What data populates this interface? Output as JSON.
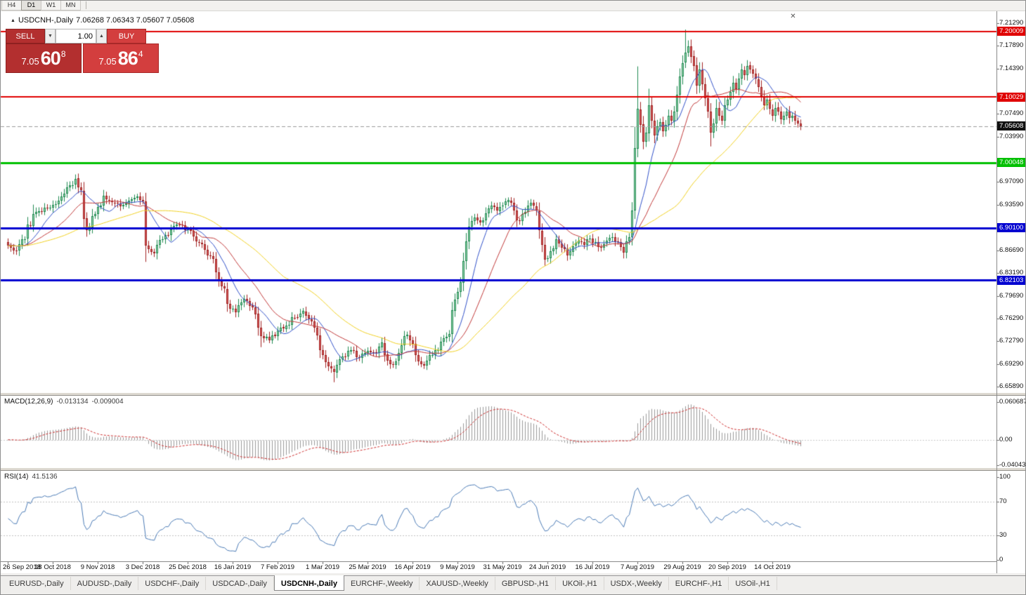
{
  "toolbar": {
    "timeframes": [
      {
        "label": "H4",
        "active": false
      },
      {
        "label": "D1",
        "active": true
      },
      {
        "label": "W1",
        "active": false
      },
      {
        "label": "MN",
        "active": false
      }
    ]
  },
  "chart": {
    "title": "USDCNH-,Daily",
    "ohlc": "7.06268 7.06343 7.05607 7.05608"
  },
  "trade_panel": {
    "sell_label": "SELL",
    "buy_label": "BUY",
    "volume": "1.00",
    "sell_price_main": "7.05",
    "sell_price_big": "60",
    "sell_price_sup": "8",
    "buy_price_main": "7.05",
    "buy_price_big": "86",
    "buy_price_sup": "4"
  },
  "close_glyph": "✕",
  "price_axis": {
    "labels": [
      "7.21290",
      "7.17890",
      "7.14390",
      "7.07490",
      "7.03990",
      "6.97090",
      "6.93590",
      "6.86690",
      "6.83190",
      "6.79690",
      "6.76290",
      "6.72790",
      "6.69290",
      "6.65890"
    ]
  },
  "macd": {
    "name": "MACD(12,26,9)",
    "main_value": "-0.013134",
    "signal_value": "-0.009004",
    "axis_labels": [
      "0.060687",
      "0.00",
      "-0.04043"
    ],
    "axis_values": [
      0.060687,
      0,
      -0.04043
    ],
    "hist_color": "#9a9a9a",
    "signal_color": "#cc2a2a"
  },
  "rsi": {
    "name": "RSI(14)",
    "value": "41.5136",
    "period": 14,
    "axis_labels": [
      "100",
      "70",
      "30",
      "0"
    ],
    "axis_values": [
      100,
      70,
      30,
      0
    ],
    "levels": [
      70,
      30
    ],
    "color": "#4a7ab5"
  },
  "tabs": [
    {
      "label": "EURUSD-,Daily",
      "active": false
    },
    {
      "label": "AUDUSD-,Daily",
      "active": false
    },
    {
      "label": "USDCHF-,Daily",
      "active": false
    },
    {
      "label": "USDCAD-,Daily",
      "active": false
    },
    {
      "label": "USDCNH-,Daily",
      "active": true
    },
    {
      "label": "EURCHF-,Weekly",
      "active": false
    },
    {
      "label": "XAUUSD-,Weekly",
      "active": false
    },
    {
      "label": "GBPUSD-,H1",
      "active": false
    },
    {
      "label": "UKOil-,H1",
      "active": false
    },
    {
      "label": "USDX-,Weekly",
      "active": false
    },
    {
      "label": "EURCHF-,H1",
      "active": false
    },
    {
      "label": "USOil-,H1",
      "active": false
    }
  ],
  "chart_data": {
    "type": "candlestick",
    "symbol": "USDCNH-",
    "timeframe": "Daily",
    "current": {
      "open": "7.06268",
      "high": "7.06343",
      "low": "7.05607",
      "close": "7.05608"
    },
    "ylim": [
      6.6589,
      7.2129
    ],
    "bar_count": 283,
    "x_tick_interval_bars": 16,
    "x_ticks": [
      "26 Sep 2018",
      "18 Oct 2018",
      "9 Nov 2018",
      "3 Dec 2018",
      "25 Dec 2018",
      "16 Jan 2019",
      "7 Feb 2019",
      "1 Mar 2019",
      "25 Mar 2019",
      "16 Apr 2019",
      "9 May 2019",
      "31 May 2019",
      "24 Jun 2019",
      "16 Jul 2019",
      "7 Aug 2019",
      "29 Aug 2019",
      "20 Sep 2019",
      "14 Oct 2019"
    ],
    "price_anchors": [
      [
        0,
        6.874
      ],
      [
        3,
        6.866
      ],
      [
        6,
        6.884
      ],
      [
        9,
        6.922
      ],
      [
        12,
        6.926
      ],
      [
        16,
        6.936
      ],
      [
        20,
        6.953
      ],
      [
        24,
        6.976
      ],
      [
        26,
        6.958
      ],
      [
        28,
        6.897
      ],
      [
        31,
        6.922
      ],
      [
        34,
        6.95
      ],
      [
        37,
        6.94
      ],
      [
        40,
        6.934
      ],
      [
        43,
        6.942
      ],
      [
        46,
        6.949
      ],
      [
        48,
        6.941
      ],
      [
        49,
        6.874
      ],
      [
        52,
        6.862
      ],
      [
        55,
        6.884
      ],
      [
        58,
        6.899
      ],
      [
        61,
        6.906
      ],
      [
        64,
        6.898
      ],
      [
        67,
        6.88
      ],
      [
        70,
        6.867
      ],
      [
        73,
        6.854
      ],
      [
        76,
        6.812
      ],
      [
        79,
        6.778
      ],
      [
        81,
        6.772
      ],
      [
        84,
        6.793
      ],
      [
        87,
        6.78
      ],
      [
        90,
        6.736
      ],
      [
        93,
        6.73
      ],
      [
        96,
        6.744
      ],
      [
        99,
        6.752
      ],
      [
        102,
        6.764
      ],
      [
        105,
        6.774
      ],
      [
        108,
        6.758
      ],
      [
        111,
        6.714
      ],
      [
        114,
        6.69
      ],
      [
        116,
        6.681
      ],
      [
        119,
        6.705
      ],
      [
        122,
        6.714
      ],
      [
        125,
        6.703
      ],
      [
        128,
        6.713
      ],
      [
        131,
        6.71
      ],
      [
        133,
        6.726
      ],
      [
        135,
        6.699
      ],
      [
        137,
        6.693
      ],
      [
        140,
        6.722
      ],
      [
        142,
        6.738
      ],
      [
        144,
        6.724
      ],
      [
        146,
        6.697
      ],
      [
        148,
        6.691
      ],
      [
        151,
        6.707
      ],
      [
        154,
        6.727
      ],
      [
        156,
        6.735
      ],
      [
        157,
        6.739
      ],
      [
        158,
        6.775
      ],
      [
        159,
        6.792
      ],
      [
        160,
        6.803
      ],
      [
        161,
        6.818
      ],
      [
        162,
        6.85
      ],
      [
        163,
        6.88
      ],
      [
        164,
        6.903
      ],
      [
        166,
        6.917
      ],
      [
        168,
        6.909
      ],
      [
        170,
        6.923
      ],
      [
        172,
        6.935
      ],
      [
        174,
        6.927
      ],
      [
        176,
        6.935
      ],
      [
        178,
        6.943
      ],
      [
        180,
        6.927
      ],
      [
        182,
        6.911
      ],
      [
        184,
        6.925
      ],
      [
        186,
        6.939
      ],
      [
        188,
        6.927
      ],
      [
        190,
        6.875
      ],
      [
        191,
        6.853
      ],
      [
        193,
        6.865
      ],
      [
        195,
        6.883
      ],
      [
        197,
        6.871
      ],
      [
        199,
        6.859
      ],
      [
        201,
        6.873
      ],
      [
        203,
        6.881
      ],
      [
        205,
        6.875
      ],
      [
        207,
        6.885
      ],
      [
        209,
        6.879
      ],
      [
        211,
        6.871
      ],
      [
        213,
        6.881
      ],
      [
        215,
        6.887
      ],
      [
        217,
        6.879
      ],
      [
        219,
        6.863
      ],
      [
        221,
        6.887
      ],
      [
        222,
        6.927
      ],
      [
        223,
        7.022
      ],
      [
        224,
        7.082
      ],
      [
        225,
        7.058
      ],
      [
        226,
        7.032
      ],
      [
        227,
        7.046
      ],
      [
        228,
        7.088
      ],
      [
        229,
        7.064
      ],
      [
        230,
        7.042
      ],
      [
        231,
        7.056
      ],
      [
        232,
        7.062
      ],
      [
        233,
        7.048
      ],
      [
        234,
        7.058
      ],
      [
        235,
        7.072
      ],
      [
        236,
        7.064
      ],
      [
        237,
        7.078
      ],
      [
        238,
        7.104
      ],
      [
        239,
        7.132
      ],
      [
        240,
        7.152
      ],
      [
        241,
        7.168
      ],
      [
        242,
        7.178
      ],
      [
        243,
        7.162
      ],
      [
        244,
        7.148
      ],
      [
        245,
        7.118
      ],
      [
        246,
        7.142
      ],
      [
        247,
        7.12
      ],
      [
        248,
        7.098
      ],
      [
        249,
        7.078
      ],
      [
        250,
        7.046
      ],
      [
        251,
        7.06
      ],
      [
        252,
        7.084
      ],
      [
        253,
        7.072
      ],
      [
        254,
        7.064
      ],
      [
        255,
        7.088
      ],
      [
        256,
        7.096
      ],
      [
        257,
        7.108
      ],
      [
        258,
        7.122
      ],
      [
        259,
        7.112
      ],
      [
        260,
        7.128
      ],
      [
        261,
        7.142
      ],
      [
        262,
        7.134
      ],
      [
        263,
        7.148
      ],
      [
        264,
        7.142
      ],
      [
        265,
        7.136
      ],
      [
        266,
        7.128
      ],
      [
        267,
        7.116
      ],
      [
        268,
        7.102
      ],
      [
        269,
        7.088
      ],
      [
        270,
        7.096
      ],
      [
        271,
        7.082
      ],
      [
        272,
        7.072
      ],
      [
        273,
        7.084
      ],
      [
        274,
        7.078
      ],
      [
        275,
        7.066
      ],
      [
        276,
        7.072
      ],
      [
        277,
        7.078
      ],
      [
        278,
        7.068
      ],
      [
        279,
        7.072
      ],
      [
        280,
        7.064
      ],
      [
        281,
        7.06
      ],
      [
        282,
        7.056
      ]
    ],
    "wick_extensions_high": {
      "9": 0.004,
      "223": 0.02,
      "224": 0.052,
      "228": 0.012,
      "241": 0.026
    },
    "wick_extensions_low": {
      "49": 0.012,
      "90": 0.008,
      "116": 0.008,
      "250": 0.008
    },
    "moving_averages": [
      {
        "period": 10,
        "color": "#3050c8"
      },
      {
        "period": 21,
        "color": "#c03838"
      },
      {
        "period": 50,
        "color": "#f0d020"
      }
    ],
    "candle_up_fill": "#9fd8b4",
    "candle_up_border": "#1f8a50",
    "candle_down_fill": "#d86060",
    "candle_down_border": "#a02020",
    "levels": [
      {
        "price": 7.20009,
        "label": "7.20009",
        "color": "#e00000",
        "width": 2
      },
      {
        "price": 7.10029,
        "label": "7.10029",
        "color": "#e00000",
        "width": 2
      },
      {
        "price": 7.00048,
        "label": "7.00048",
        "color": "#00c000",
        "width": 3
      },
      {
        "price": 6.901,
        "label": "6.90100",
        "color": "#0000d0",
        "width": 3
      },
      {
        "price": 6.82103,
        "label": "6.82103",
        "color": "#0000d0",
        "width": 3
      }
    ],
    "current_price_line": {
      "price": 7.05608,
      "label": "7.05608",
      "line_color": "#9a9a9a",
      "badge_color": "#101010"
    }
  }
}
